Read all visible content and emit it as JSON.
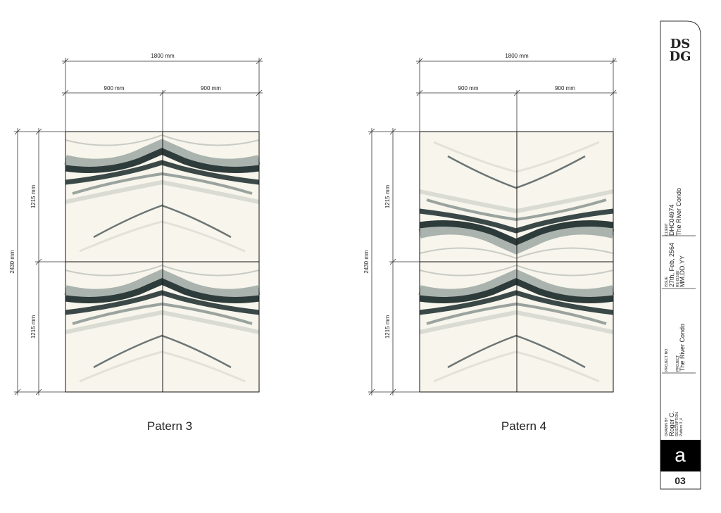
{
  "drawings": [
    {
      "title": "Patern 3",
      "total_width": "1800 mm",
      "half_widths": [
        "900 mm",
        "900 mm"
      ],
      "total_height": "2430 mm",
      "half_heights": [
        "1215 mm",
        "1215 mm"
      ]
    },
    {
      "title": "Patern 4",
      "total_width": "1800 mm",
      "half_widths": [
        "900 mm",
        "900 mm"
      ],
      "total_height": "2430 mm",
      "half_heights": [
        "1215 mm",
        "1215 mm"
      ]
    }
  ],
  "title_block": {
    "logo": [
      "DS",
      "DG"
    ],
    "client_label": "CLIENT",
    "client_code": "DHC04974",
    "client_name": "The River Condo",
    "issue_label": "ISSUE",
    "issue_date": "27th, Feb, 2564",
    "reissue_label": "RE-ISSUE",
    "reissue_date": "MM.DD.YY",
    "project_no_label": "PROJECT NO.",
    "project_label": "PROJECT",
    "project_name": "The River Condo",
    "drawn_by_label": "DRAWN BY",
    "drawn_by": "Roger C.",
    "description_label": "DESCRIPTION",
    "description": "Pattern 3 ,4",
    "revision": "a",
    "sheet": "03"
  }
}
